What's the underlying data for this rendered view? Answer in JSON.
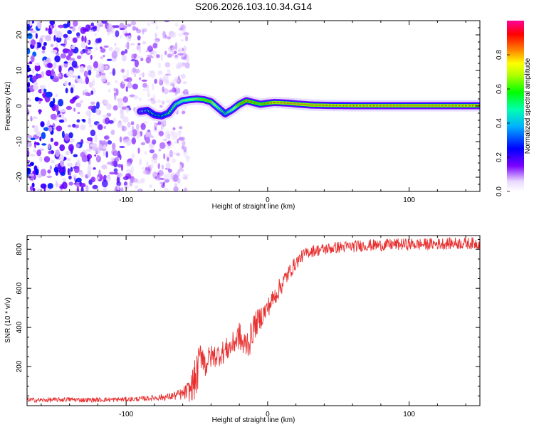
{
  "chart_data": [
    {
      "type": "heatmap",
      "title": "S206.2026.103.10.34.G14",
      "xlabel": "Height of straight line (km)",
      "ylabel": "Frequency (Hz)",
      "xlim": [
        -170,
        150
      ],
      "ylim": [
        -24,
        24
      ],
      "xticks": [
        -100,
        0,
        100
      ],
      "xtick_labels": [
        "-100",
        "0",
        "100"
      ],
      "yticks": [
        -20,
        -10,
        0,
        10,
        20
      ],
      "ytick_labels": [
        "-20",
        "-10",
        "0",
        "10",
        "20"
      ],
      "noise_region_x": [
        -170,
        -70
      ],
      "signal_track": {
        "x": [
          -90,
          -85,
          -80,
          -75,
          -70,
          -65,
          -60,
          -55,
          -50,
          -45,
          -40,
          -35,
          -30,
          -25,
          -20,
          -15,
          -10,
          -5,
          0,
          5,
          10,
          15,
          20,
          30,
          40,
          60,
          80,
          100,
          120,
          150
        ],
        "freq": [
          -1.5,
          -1.2,
          -2.5,
          -2.8,
          -2.0,
          0.5,
          1.5,
          1.8,
          2.0,
          1.8,
          1.2,
          -0.5,
          -2.2,
          -1.0,
          0.5,
          1.5,
          1.0,
          0.5,
          0.8,
          1.0,
          0.9,
          0.8,
          0.6,
          0.3,
          0.2,
          0.1,
          0.1,
          0.1,
          0.1,
          0.1
        ],
        "amplitude": [
          0.45,
          0.5,
          0.55,
          0.55,
          0.6,
          0.65,
          0.7,
          0.75,
          0.8,
          0.85,
          0.85,
          0.7,
          0.6,
          0.7,
          0.85,
          0.9,
          0.9,
          0.85,
          0.9,
          0.95,
          0.95,
          0.95,
          0.95,
          0.95,
          0.95,
          0.95,
          0.95,
          0.95,
          0.95,
          0.95
        ]
      },
      "colorbar": {
        "label": "Normalized spectral amplitude",
        "range": [
          0,
          1
        ],
        "ticks": [
          0.0,
          0.2,
          0.4,
          0.6,
          0.8
        ],
        "tick_labels": [
          "0.0",
          "0.2",
          "0.4",
          "0.6",
          "0.8"
        ]
      }
    },
    {
      "type": "line",
      "title": "",
      "xlabel": "Height of straight line (km)",
      "ylabel": "SNR (10 * v/v)",
      "xlim": [
        -170,
        150
      ],
      "ylim": [
        0,
        870
      ],
      "xticks": [
        -100,
        0,
        100
      ],
      "xtick_labels": [
        "-100",
        "0",
        "100"
      ],
      "yticks": [
        200,
        400,
        600,
        800
      ],
      "ytick_labels": [
        "200",
        "400",
        "600",
        "800"
      ],
      "series": [
        {
          "name": "SNR",
          "color": "#e83030",
          "x": [
            -170,
            -160,
            -150,
            -140,
            -130,
            -120,
            -110,
            -100,
            -90,
            -80,
            -70,
            -60,
            -55,
            -50,
            -48,
            -46,
            -44,
            -42,
            -40,
            -35,
            -30,
            -25,
            -20,
            -17,
            -15,
            -12,
            -10,
            -5,
            0,
            5,
            10,
            15,
            20,
            25,
            30,
            40,
            50,
            60,
            70,
            80,
            90,
            100,
            110,
            120,
            130,
            140,
            150
          ],
          "y": [
            30,
            28,
            30,
            32,
            29,
            30,
            31,
            32,
            35,
            40,
            45,
            60,
            80,
            150,
            250,
            280,
            200,
            240,
            250,
            260,
            280,
            310,
            360,
            300,
            320,
            340,
            400,
            450,
            500,
            560,
            620,
            680,
            730,
            770,
            790,
            800,
            810,
            815,
            820,
            820,
            825,
            825,
            825,
            828,
            830,
            830,
            830
          ],
          "noise": [
            12,
            12,
            12,
            12,
            12,
            12,
            12,
            12,
            12,
            15,
            18,
            30,
            60,
            120,
            70,
            90,
            70,
            60,
            60,
            60,
            60,
            60,
            70,
            80,
            80,
            80,
            70,
            60,
            50,
            50,
            50,
            40,
            35,
            30,
            30,
            30,
            30,
            30,
            30,
            30,
            30,
            30,
            30,
            30,
            30,
            30,
            30
          ]
        }
      ]
    }
  ]
}
